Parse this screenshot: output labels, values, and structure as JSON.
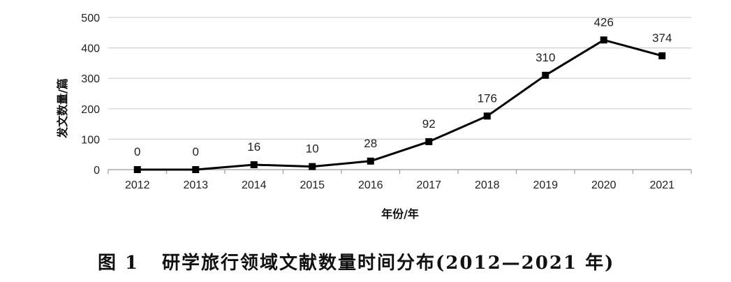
{
  "caption": {
    "figure_number": "图 1",
    "text": "研学旅行领域文献数量时间分布(2012—2021 年)"
  },
  "chart_data": {
    "type": "line",
    "title": "",
    "xlabel": "年份/年",
    "ylabel": "发文数量/篇",
    "categories": [
      "2012",
      "2013",
      "2014",
      "2015",
      "2016",
      "2017",
      "2018",
      "2019",
      "2020",
      "2021"
    ],
    "series": [
      {
        "values": [
          0,
          0,
          16,
          10,
          28,
          92,
          176,
          310,
          426,
          374
        ],
        "labels": [
          "0",
          "0",
          "16",
          "10",
          "28",
          "92",
          "176",
          "310",
          "426",
          "374"
        ],
        "marker": "square",
        "color": "#000000"
      }
    ],
    "ylim": [
      0,
      500
    ],
    "yticks": [
      0,
      100,
      200,
      300,
      400,
      500
    ],
    "grid": "horizontal",
    "colors": {
      "line": "#000000",
      "grid": "#d0d0d0",
      "axis": "#999999"
    }
  }
}
